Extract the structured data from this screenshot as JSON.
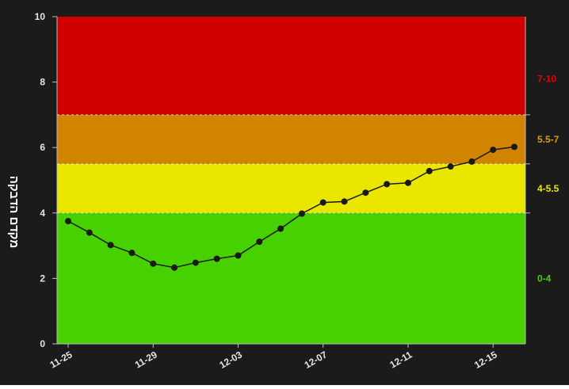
{
  "chart_data": {
    "type": "line",
    "title": "",
    "xlabel": "",
    "ylabel": "מקדם הדבקה",
    "ylim": [
      0,
      10
    ],
    "yticks": [
      0,
      2,
      4,
      6,
      8,
      10
    ],
    "grid": false,
    "background": "#1b1b1b",
    "x_tick_labels": [
      "11-25",
      "11-29",
      "12-03",
      "12-07",
      "12-11",
      "12-15"
    ],
    "x_tick_indices": [
      0,
      4,
      8,
      12,
      16,
      20
    ],
    "series": [
      {
        "color": "#1a1a1a",
        "x": [
          "11-25",
          "11-26",
          "11-27",
          "11-28",
          "11-29",
          "11-30",
          "12-01",
          "12-02",
          "12-03",
          "12-04",
          "12-05",
          "12-06",
          "12-07",
          "12-08",
          "12-09",
          "12-10",
          "12-11",
          "12-12",
          "12-13",
          "12-14",
          "12-15",
          "12-16"
        ],
        "values": [
          3.75,
          3.4,
          3.02,
          2.78,
          2.45,
          2.33,
          2.48,
          2.6,
          2.7,
          3.12,
          3.52,
          3.98,
          4.32,
          4.35,
          4.62,
          4.88,
          4.92,
          5.28,
          5.42,
          5.57,
          5.93,
          6.02
        ]
      }
    ],
    "zones": [
      {
        "label": "0-4",
        "min": 0,
        "max": 4,
        "color": "#47d100",
        "label_color": "#47d100"
      },
      {
        "label": "4-5.5",
        "min": 4,
        "max": 5.5,
        "color": "#ebe600",
        "label_color": "#ebe600"
      },
      {
        "label": "5.5-7",
        "min": 5.5,
        "max": 7,
        "color": "#d08400",
        "label_color": "#e19b00"
      },
      {
        "label": "7-10",
        "min": 7,
        "max": 10,
        "color": "#d00000",
        "label_color": "#e00000"
      }
    ]
  }
}
